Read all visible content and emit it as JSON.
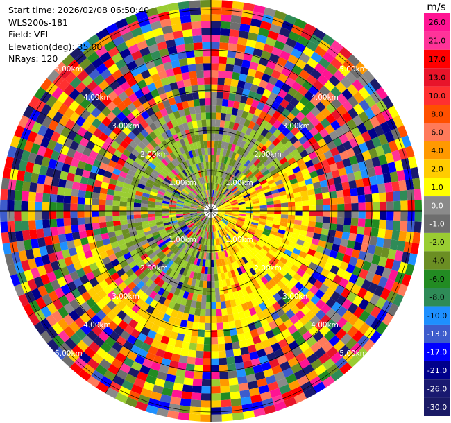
{
  "info": {
    "start_time": "Start time: 2026/02/08 06:50:40",
    "station": "WLS200s-181",
    "field": "Field: VEL",
    "elevation": "Elevation(deg): 35.00",
    "nrays": "NRays: 120"
  },
  "chart_data": {
    "type": "ppi",
    "field": "VEL",
    "nrays": 120,
    "range_rings_km": [
      1,
      2,
      3,
      4,
      5
    ],
    "range_labels": [
      "1.00km",
      "2.00km",
      "3.00km",
      "4.00km",
      "5.00km"
    ],
    "colorbar": {
      "unit": "m/s",
      "ticks": [
        "26.0",
        "21.0",
        "17.0",
        "13.0",
        "10.0",
        "8.0",
        "6.0",
        "4.0",
        "2.0",
        "1.0",
        "0.0",
        "-1.0",
        "-2.0",
        "-4.0",
        "-6.0",
        "-8.0",
        "-10.0",
        "-13.0",
        "-17.0",
        "-21.0",
        "-26.0",
        "-30.0"
      ],
      "colors": [
        "#ff1493",
        "#ff3399",
        "#ff0000",
        "#e8142a",
        "#ff3030",
        "#ff5000",
        "#ff7a5a",
        "#ff9900",
        "#ffcc00",
        "#ffff00",
        "#8a8a8a",
        "#6e6e6e",
        "#9acd32",
        "#6b8e23",
        "#228b22",
        "#2e8b57",
        "#1e90ff",
        "#3d5ccc",
        "#0000ff",
        "#00008b",
        "#191970",
        "#1a1a66"
      ]
    }
  }
}
